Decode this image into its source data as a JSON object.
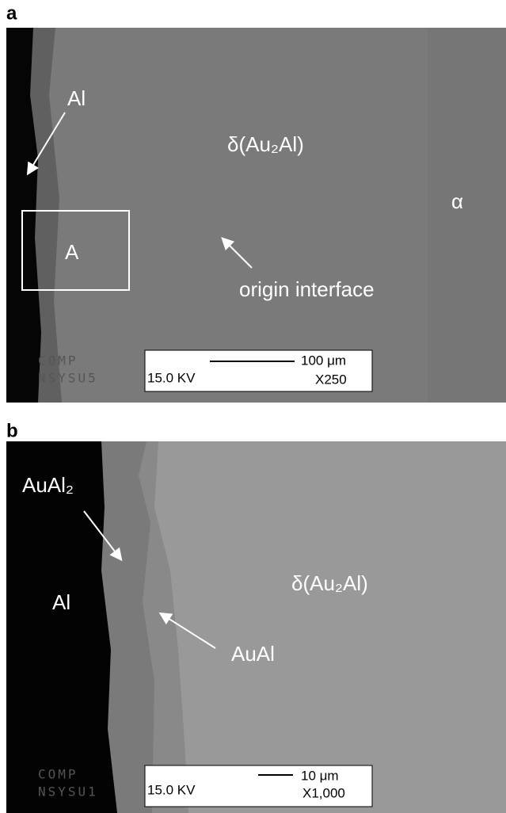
{
  "panels": [
    {
      "label": "a",
      "annotations": [
        "Al",
        "δ(Au₂Al)",
        "α",
        "A",
        "origin interface"
      ],
      "watermark": [
        "COMP",
        "NSYSU5"
      ],
      "scale_box": {
        "voltage": "15.0 KV",
        "scale": "100 μm",
        "magnification": "X250"
      }
    },
    {
      "label": "b",
      "annotations": [
        "AuAl₂",
        "Al",
        "δ(Au₂Al)",
        "AuAl"
      ],
      "watermark": [
        "COMP",
        "NSYSU1"
      ],
      "scale_box": {
        "voltage": "15.0 KV",
        "scale": "10 μm",
        "magnification": "X1,000"
      }
    }
  ]
}
